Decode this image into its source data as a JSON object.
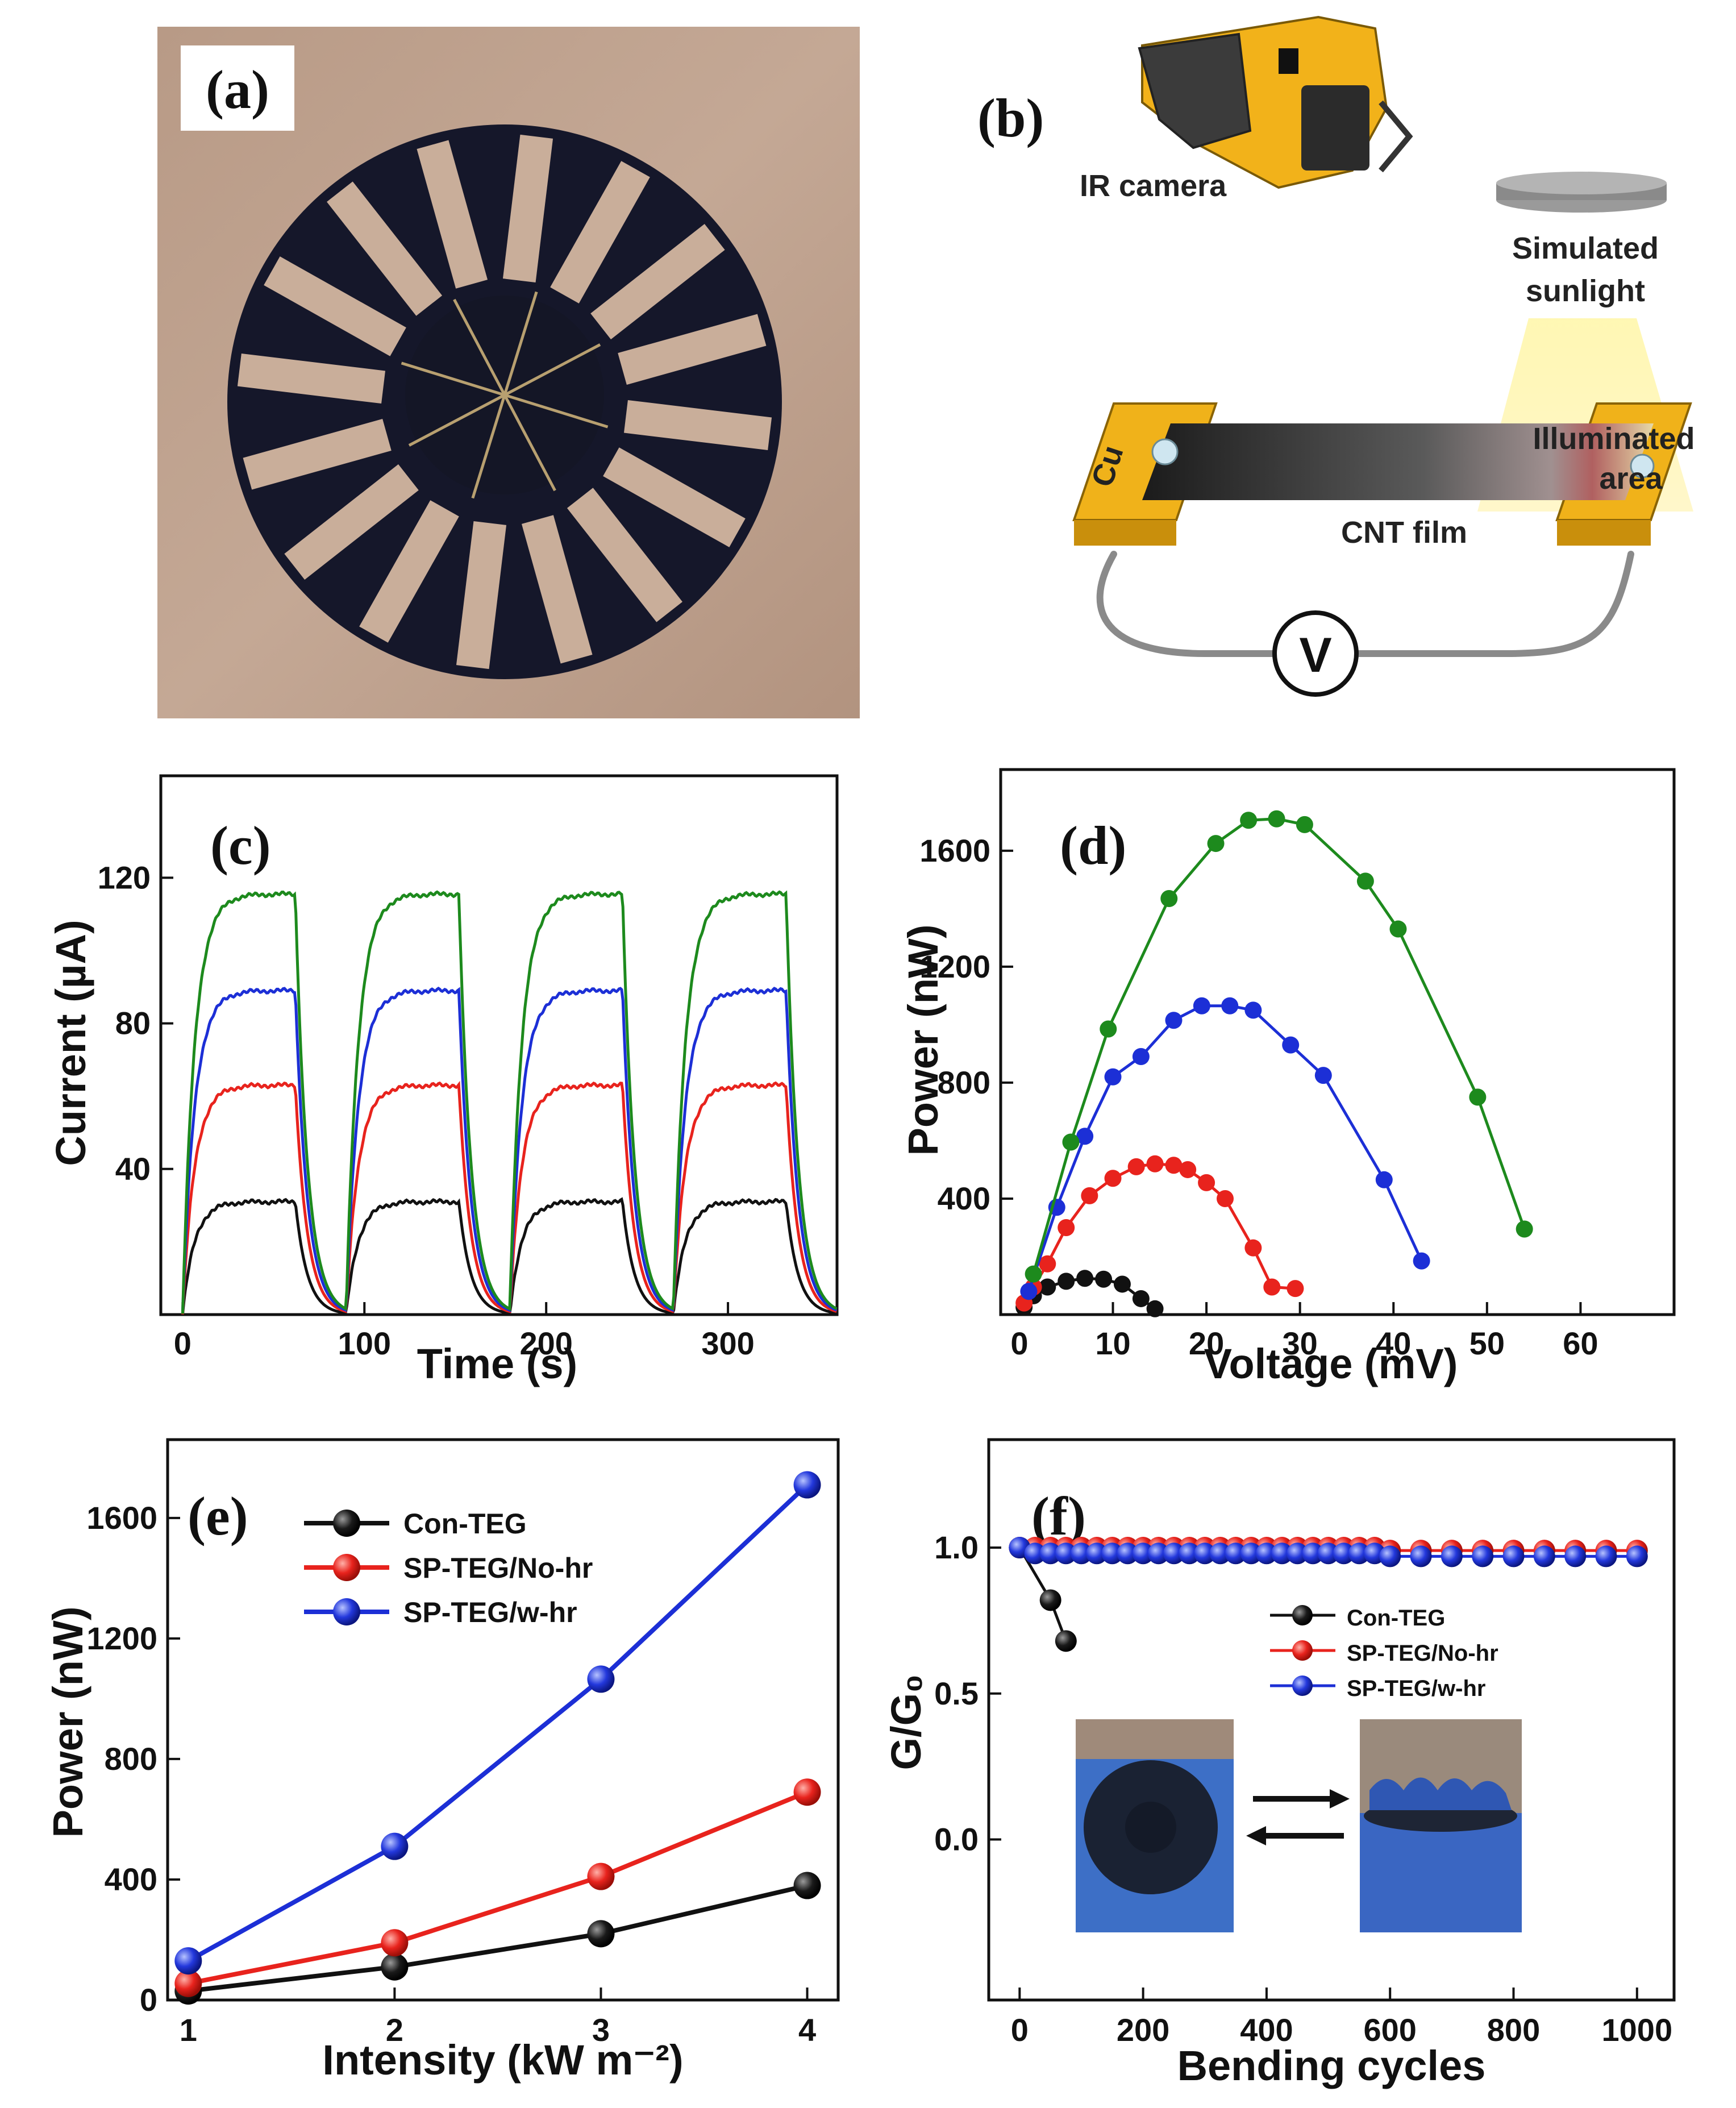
{
  "panels": {
    "a": {
      "label": "(a)"
    },
    "b": {
      "label": "(b)",
      "ir_camera": "IR camera",
      "simulated": "Simulated",
      "sunlight": "sunlight",
      "illuminated": "Illuminated",
      "area": "area",
      "cu": "Cu",
      "cnt_film": "CNT film",
      "v": "V"
    },
    "c": {
      "label": "(c)"
    },
    "d": {
      "label": "(d)"
    },
    "e": {
      "label": "(e)"
    },
    "f": {
      "label": "(f)"
    }
  },
  "colors": {
    "black": "#111111",
    "red": "#e8231d",
    "blue": "#1c2fd6",
    "green": "#1d8a1d"
  },
  "chart_data": [
    {
      "id": "c",
      "type": "line",
      "xlabel": "Time (s)",
      "ylabel": "Current (µA)",
      "xlim": [
        -12,
        360
      ],
      "ylim": [
        0,
        148
      ],
      "xticks": [
        0,
        100,
        200,
        300
      ],
      "yticks": [
        40,
        80,
        120
      ],
      "cycle_starts": [
        0,
        90,
        180,
        270
      ],
      "on_duration": 62,
      "series": [
        {
          "color": "black",
          "plateau": 31
        },
        {
          "color": "red",
          "plateau": 63
        },
        {
          "color": "blue",
          "plateau": 89
        },
        {
          "color": "green",
          "plateau": 115.5
        }
      ]
    },
    {
      "id": "d",
      "type": "line",
      "xlabel": "Voltage (mV)",
      "ylabel": "Power (nW)",
      "xlim": [
        -2,
        70
      ],
      "ylim": [
        0,
        1880
      ],
      "xticks": [
        0,
        10,
        20,
        30,
        40,
        50,
        60
      ],
      "yticks": [
        400,
        800,
        1200,
        1600
      ],
      "series": [
        {
          "color": "black",
          "points": [
            [
              0.5,
              25
            ],
            [
              1.5,
              65
            ],
            [
              3,
              95
            ],
            [
              5,
              115
            ],
            [
              7,
              125
            ],
            [
              9,
              122
            ],
            [
              11,
              105
            ],
            [
              13,
              55
            ],
            [
              14.5,
              20
            ]
          ]
        },
        {
          "color": "red",
          "points": [
            [
              0.5,
              40
            ],
            [
              1.5,
              95
            ],
            [
              3,
              175
            ],
            [
              5,
              300
            ],
            [
              7.5,
              410
            ],
            [
              10,
              470
            ],
            [
              12.5,
              510
            ],
            [
              14.5,
              520
            ],
            [
              16.5,
              515
            ],
            [
              18,
              500
            ],
            [
              20,
              455
            ],
            [
              22,
              400
            ],
            [
              25,
              230
            ],
            [
              27,
              95
            ],
            [
              29.5,
              90
            ]
          ]
        },
        {
          "color": "blue",
          "points": [
            [
              1,
              80
            ],
            [
              4,
              370
            ],
            [
              7,
              615
            ],
            [
              10,
              820
            ],
            [
              13,
              890
            ],
            [
              16.5,
              1015
            ],
            [
              19.5,
              1065
            ],
            [
              22.5,
              1065
            ],
            [
              25,
              1050
            ],
            [
              29,
              930
            ],
            [
              32.5,
              825
            ],
            [
              39,
              465
            ],
            [
              43,
              185
            ]
          ]
        },
        {
          "color": "green",
          "points": [
            [
              1.5,
              140
            ],
            [
              5.5,
              595
            ],
            [
              9.5,
              985
            ],
            [
              16,
              1435
            ],
            [
              21,
              1625
            ],
            [
              24.5,
              1705
            ],
            [
              27.5,
              1710
            ],
            [
              30.5,
              1690
            ],
            [
              37,
              1495
            ],
            [
              40.5,
              1330
            ],
            [
              49,
              750
            ],
            [
              54,
              295
            ]
          ]
        }
      ]
    },
    {
      "id": "e",
      "type": "line",
      "xlabel": "Intensity (kW m⁻²)",
      "ylabel": "Power (nW)",
      "xlim": [
        0.9,
        4.15
      ],
      "ylim": [
        0,
        1860
      ],
      "xticks": [
        1,
        2,
        3,
        4
      ],
      "yticks": [
        0,
        400,
        800,
        1200,
        1600
      ],
      "legend": "top-left",
      "series": [
        {
          "name": "Con-TEG",
          "color": "black",
          "x": [
            1,
            2,
            3,
            4
          ],
          "y": [
            30,
            110,
            220,
            380
          ]
        },
        {
          "name": "SP-TEG/No-hr",
          "color": "red",
          "x": [
            1,
            2,
            3,
            4
          ],
          "y": [
            55,
            190,
            410,
            690
          ]
        },
        {
          "name": "SP-TEG/w-hr",
          "color": "blue",
          "x": [
            1,
            2,
            3,
            4
          ],
          "y": [
            130,
            510,
            1065,
            1710
          ]
        }
      ]
    },
    {
      "id": "f",
      "type": "line",
      "xlabel": "Bending cycles",
      "ylabel": "G/G₀",
      "xlim": [
        -50,
        1060
      ],
      "ylim": [
        -0.55,
        1.37
      ],
      "xticks": [
        0,
        200,
        400,
        600,
        800,
        1000
      ],
      "yticks": [
        0.0,
        0.5,
        1.0
      ],
      "legend": "right",
      "series": [
        {
          "name": "Con-TEG",
          "color": "black",
          "x": [
            0,
            50,
            75
          ],
          "y": [
            1.0,
            0.82,
            0.68
          ]
        },
        {
          "name": "SP-TEG/No-hr",
          "color": "red",
          "x": [
            0,
            25,
            50,
            75,
            100,
            125,
            150,
            175,
            200,
            225,
            250,
            275,
            300,
            325,
            350,
            375,
            400,
            425,
            450,
            475,
            500,
            525,
            550,
            575,
            600,
            650,
            700,
            750,
            800,
            850,
            900,
            950,
            1000
          ],
          "y": [
            1.0,
            1.0,
            1.0,
            1.0,
            1.0,
            1.0,
            1.0,
            1.0,
            1.0,
            1.0,
            1.0,
            1.0,
            1.0,
            1.0,
            1.0,
            1.0,
            1.0,
            1.0,
            1.0,
            1.0,
            1.0,
            1.0,
            1.0,
            1.0,
            0.99,
            0.99,
            0.99,
            0.99,
            0.99,
            0.99,
            0.99,
            0.99,
            0.99
          ]
        },
        {
          "name": "SP-TEG/w-hr",
          "color": "blue",
          "x": [
            0,
            25,
            50,
            75,
            100,
            125,
            150,
            175,
            200,
            225,
            250,
            275,
            300,
            325,
            350,
            375,
            400,
            425,
            450,
            475,
            500,
            525,
            550,
            575,
            600,
            650,
            700,
            750,
            800,
            850,
            900,
            950,
            1000
          ],
          "y": [
            1.0,
            0.98,
            0.98,
            0.98,
            0.98,
            0.98,
            0.98,
            0.98,
            0.98,
            0.98,
            0.98,
            0.98,
            0.98,
            0.98,
            0.98,
            0.98,
            0.98,
            0.98,
            0.98,
            0.98,
            0.98,
            0.98,
            0.98,
            0.98,
            0.97,
            0.97,
            0.97,
            0.97,
            0.97,
            0.97,
            0.97,
            0.97,
            0.97
          ]
        }
      ]
    }
  ]
}
